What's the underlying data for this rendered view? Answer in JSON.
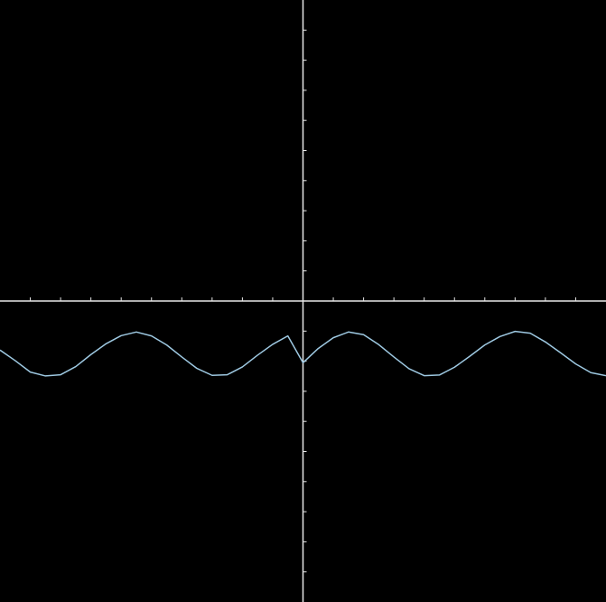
{
  "chart_data": {
    "type": "line",
    "xlim": [
      -10,
      10
    ],
    "ylim": [
      -10,
      10
    ],
    "grid": false,
    "legend": "none",
    "axes_ticks": {
      "x_step": 1,
      "y_step": 1
    },
    "series": [
      {
        "color": "#9ec9e2",
        "x": [
          -10,
          -9.5,
          -9,
          -8.5,
          -8,
          -7.5,
          -7,
          -6.5,
          -6,
          -5.5,
          -5,
          -4.5,
          -4,
          -3.5,
          -3,
          -2.5,
          -2,
          -1.5,
          -1,
          -0.5,
          0,
          0.5,
          1,
          1.5,
          2,
          2.5,
          3,
          3.5,
          4,
          4.5,
          5,
          5.5,
          6,
          6.5,
          7,
          7.5,
          8,
          8.5,
          9,
          9.5,
          10
        ],
        "y": [
          -1.63,
          -1.98,
          -2.36,
          -2.49,
          -2.45,
          -2.18,
          -1.78,
          -1.42,
          -1.15,
          -1.03,
          -1.16,
          -1.46,
          -1.86,
          -2.24,
          -2.47,
          -2.45,
          -2.19,
          -1.8,
          -1.44,
          -1.16,
          -2.05,
          -1.58,
          -1.22,
          -1.03,
          -1.12,
          -1.45,
          -1.86,
          -2.25,
          -2.48,
          -2.46,
          -2.2,
          -1.84,
          -1.46,
          -1.18,
          -1.01,
          -1.07,
          -1.36,
          -1.72,
          -2.09,
          -2.38,
          -2.48
        ]
      }
    ],
    "colors": {
      "background": "#000000",
      "axis": "#e8e8e8",
      "curve": "#9ec9e2"
    }
  }
}
